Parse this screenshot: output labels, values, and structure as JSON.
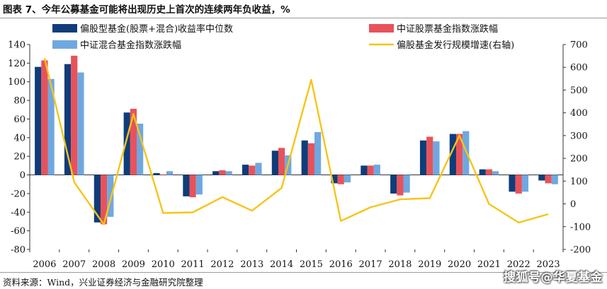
{
  "header": {
    "title": "图表 7、今年公募基金可能将出现历史上首次的连续两年负收益，%"
  },
  "footer": {
    "source": "资料来源：Wind，兴业证券经济与金融研究院整理",
    "watermark": "搜狐号@华夏基金"
  },
  "colors": {
    "series1": "#0f3d7a",
    "series2": "#e8525a",
    "series3": "#6fa8e0",
    "series4": "#f5c518"
  },
  "chart_data": {
    "type": "bar",
    "categories": [
      "2006",
      "2007",
      "2008",
      "2009",
      "2010",
      "2011",
      "2012",
      "2013",
      "2014",
      "2015",
      "2016",
      "2017",
      "2018",
      "2019",
      "2020",
      "2021",
      "2022",
      "2023"
    ],
    "ylim": [
      -80,
      140
    ],
    "y_ticks": [
      "-80",
      "-60",
      "-40",
      "-20",
      "0",
      "20",
      "40",
      "60",
      "80",
      "100",
      "120",
      "140"
    ],
    "y2lim": [
      -200,
      700
    ],
    "y2_ticks": [
      "-200",
      "-100",
      "0",
      "100",
      "200",
      "300",
      "400",
      "500",
      "600",
      "700"
    ],
    "legend_position": "top",
    "grid": false,
    "series": [
      {
        "name": "偏股型基金(股票+混合)收益率中位数",
        "type": "bar",
        "axis": "left",
        "values": [
          116,
          119,
          -51,
          67,
          2,
          -23,
          4,
          11,
          26,
          37,
          -9,
          10,
          -20,
          37,
          44,
          6,
          -18,
          -6
        ]
      },
      {
        "name": "中证股票基金指数涨跌幅",
        "type": "bar",
        "axis": "left",
        "values": [
          123,
          128,
          -53,
          71,
          0,
          -24,
          5,
          10,
          29,
          34,
          -10,
          10,
          -22,
          41,
          44,
          6,
          -20,
          -9
        ]
      },
      {
        "name": "中证混合基金指数涨跌幅",
        "type": "bar",
        "axis": "left",
        "values": [
          103,
          110,
          -45,
          55,
          4,
          -21,
          4,
          13,
          21,
          46,
          -8,
          11,
          -19,
          36,
          47,
          4,
          -18,
          -10
        ]
      },
      {
        "name": "偏股基金发行规模增速(右轴)",
        "type": "line",
        "axis": "right",
        "values": [
          640,
          95,
          -90,
          395,
          -40,
          -37,
          30,
          -30,
          70,
          545,
          -75,
          -15,
          20,
          25,
          300,
          0,
          -82,
          -45
        ]
      }
    ]
  }
}
